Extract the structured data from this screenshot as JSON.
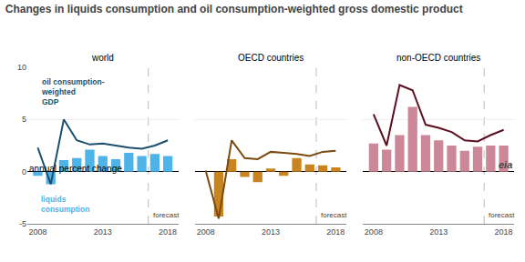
{
  "title": "Changes in liquids consumption and oil consumption-weighted gross domestic product",
  "subtitle": "annual percent change",
  "annotations": [
    {
      "text": "eia"
    }
  ],
  "chart_data": [
    {
      "type": "bar",
      "title": "world",
      "x": [
        2008,
        2009,
        2010,
        2011,
        2012,
        2013,
        2014,
        2015,
        2016,
        2017,
        2018
      ],
      "series": [
        {
          "type": "bar",
          "color": "#4db3e8",
          "values": [
            -0.4,
            -1.2,
            1.1,
            1.3,
            2.1,
            1.5,
            1.2,
            1.8,
            1.5,
            1.7,
            1.5
          ]
        },
        {
          "type": "line",
          "color": "#1c4f6e",
          "values": [
            2.3,
            -1.2,
            5.0,
            3.0,
            2.6,
            2.7,
            2.5,
            2.3,
            2.2,
            2.5,
            3.0
          ]
        }
      ],
      "xlim": [
        2007.2,
        2018.8
      ],
      "xticks": [
        2008,
        2013,
        2018
      ],
      "ylim": [
        -5,
        10
      ],
      "yticks": [
        -5,
        0,
        5,
        10
      ],
      "grid": true,
      "annotations": [
        {
          "text": "forecast",
          "x": 2016.5,
          "line_style": "dashed"
        },
        {
          "text": "oil consumption-\nweighted\nGDP",
          "x": 2008.1,
          "y": 9.2,
          "color": "#1c4f6e"
        },
        {
          "text": "liquids\nconsumption",
          "x": 2008.1,
          "y": -2.0,
          "color": "#4db3e8"
        }
      ]
    },
    {
      "type": "bar",
      "title": "OECD countries",
      "x": [
        2008,
        2009,
        2010,
        2011,
        2012,
        2013,
        2014,
        2015,
        2016,
        2017,
        2018
      ],
      "series": [
        {
          "type": "bar",
          "color": "#c8841e",
          "values": [
            0.0,
            -4.3,
            1.2,
            -0.5,
            -1.0,
            0.3,
            -0.4,
            1.3,
            0.7,
            0.6,
            0.4
          ]
        },
        {
          "type": "line",
          "color": "#7a4a10",
          "values": [
            0.1,
            -4.5,
            3.0,
            1.3,
            1.2,
            1.9,
            1.8,
            1.7,
            1.5,
            1.9,
            2.0
          ]
        }
      ],
      "xlim": [
        2007.2,
        2018.8
      ],
      "xticks": [
        2008,
        2013,
        2018
      ],
      "ylim": [
        -5,
        10
      ],
      "yticks": [
        -5,
        0,
        5,
        10
      ],
      "grid": true,
      "tick_labels": "x",
      "annotations": [
        {
          "text": "forecast",
          "x": 2016.5,
          "line_style": "dashed"
        }
      ]
    },
    {
      "type": "bar",
      "title": "non-OECD countries",
      "x": [
        2008,
        2009,
        2010,
        2011,
        2012,
        2013,
        2014,
        2015,
        2016,
        2017,
        2018
      ],
      "series": [
        {
          "type": "bar",
          "color": "#cc8898",
          "values": [
            2.7,
            2.1,
            3.5,
            6.2,
            3.5,
            3.0,
            2.5,
            2.0,
            2.4,
            2.5,
            2.5
          ]
        },
        {
          "type": "line",
          "color": "#5c1020",
          "values": [
            5.5,
            2.5,
            8.3,
            7.8,
            4.5,
            4.2,
            3.8,
            3.0,
            2.9,
            3.5,
            4.0
          ]
        }
      ],
      "xlim": [
        2007.2,
        2018.8
      ],
      "xticks": [
        2008,
        2013,
        2018
      ],
      "ylim": [
        -5,
        10
      ],
      "yticks": [
        -5,
        0,
        5,
        10
      ],
      "grid": true,
      "tick_labels": "x",
      "annotations": [
        {
          "text": "forecast",
          "x": 2016.5,
          "line_style": "dashed"
        }
      ]
    }
  ]
}
